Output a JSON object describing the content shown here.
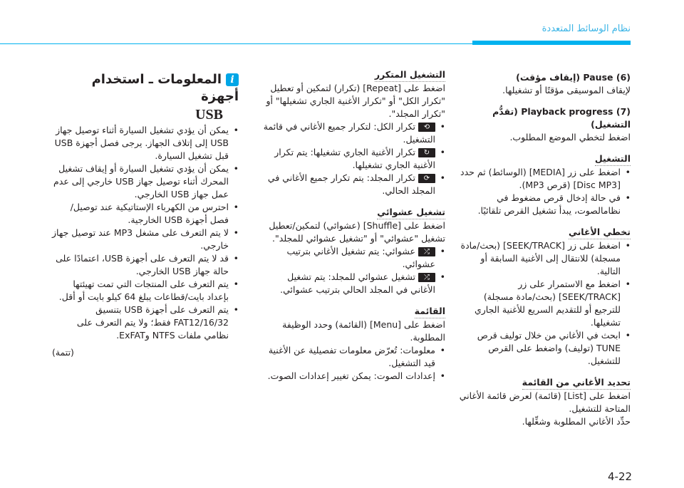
{
  "header": {
    "title": "نظام الوسائط المتعددة",
    "accent_color": "#00b2ef"
  },
  "right_column": {
    "pause": {
      "heading": "(6) Pause (إيقاف مؤقت)",
      "text": "لإيقاف الموسيقى مؤقتًا أو تشغيلها."
    },
    "progress": {
      "heading": "(7) Playback progress (تقدُّم التشغيل)",
      "text": "اضغط لتخطي الموضع المطلوب."
    },
    "playing": {
      "heading": "التشغيل",
      "items": [
        "اضغط على زر [MEDIA] (الوسائط) ثم حدد [Disc MP3] (قرص MP3).",
        "في حالة إدخال قرص مضغوط في نظامالصوت، يبدأ تشغيل القرص تلقائيًا."
      ]
    },
    "skipping": {
      "heading": "تخطي الأغاني",
      "items": [
        "اضغط على زر [SEEK/TRACK] (بحث/مادة مسجلة) للانتقال إلى الأغنية السابقة أو التالية.",
        "اضغط مع الاستمرار على زر [SEEK/TRACK] (بحث/مادة مسجلة) للترجيع أو للتقديم السريع للأغنية الجاري تشغيلها.",
        "ابحث في الأغاني من خلال توليف قرص TUNE (توليف) واضغط على القرص للتشغيل."
      ]
    },
    "select_list": {
      "heading": "تحديد الأغاني من القائمة",
      "text1": "اضغط على [List] (قائمة) لعرض قائمة الأغاني المتاحة للتشغيل.",
      "text2": "حدِّد الأغاني المطلوبة وشغِّلها."
    }
  },
  "middle_column": {
    "repeat": {
      "heading": "التشغيل المتكرر",
      "text": "اضغط على [Repeat] (تكرار) لتمكين أو تعطيل \"تكرار الكل\" أو \"تكرار الأغنية الجاري تشغيلها\" أو \"تكرار المجلد\".",
      "items": [
        {
          "icon": "repeat-all-icon",
          "text": "تكرار الكل: لتكرار جميع الأغاني في قائمة التشغيل."
        },
        {
          "icon": "repeat-one-icon",
          "text": "تكرار الأغنية الجاري تشغيلها: يتم تكرار الأغنية الجاري تشغيلها."
        },
        {
          "icon": "repeat-folder-icon",
          "text": "تكرار المجلد: يتم تكرار جميع الأغاني في المجلد الحالي."
        }
      ]
    },
    "shuffle": {
      "heading": "تشغيل عشوائي",
      "text": "اضغط على [Shuffle] (عشوائي) لتمكين/تعطيل تشغيل \"عشوائي\" أو \"تشغيل عشوائي للمجلد\".",
      "items": [
        {
          "icon": "shuffle-icon",
          "text": "عشوائي: يتم تشغيل الأغاني بترتيب عشوائي."
        },
        {
          "icon": "shuffle-folder-icon",
          "text": "تشغيل عشوائي للمجلد:  يتم تشغيل الأغاني في المجلد الحالي بترتيب عشوائي."
        }
      ]
    },
    "menu": {
      "heading": "القائمة",
      "text": "اضغط على [Menu] (القائمة) وحدد الوظيفة المطلوبة.",
      "items": [
        "معلومات: تُعرّض معلومات تفصيلية عن الأغنية قيد التشغيل.",
        "إعدادات الصوت: يمكن تغيير إعدادات الصوت."
      ]
    }
  },
  "left_column": {
    "info_title": "المعلومات ـ استخدام أجهزة",
    "info_title_usb": "USB",
    "items": [
      "يمكن أن يؤدي تشغيل السيارة أثناء توصيل جهاز USB إلى إتلاف الجهاز. يرجى فصل أجهزة USB قبل تشغيل السيارة.",
      "يمكن أن يؤدي تشغيل السيارة أو إيقاف تشغيل المحرك أثناء توصيل جهاز USB خارجي إلى عدم عمل جهاز USB الخارجي.",
      "احترس من الكهرباء الإستاتيكية عند توصيل/فصل أجهزة USB الخارجية.",
      "لا يتم التعرف على مشغل MP3 عند توصيل جهاز خارجي.",
      "قد لا يتم التعرف على أجهزة USB، اعتمادًا على حالة جهاز USB الخارجي.",
      "يتم التعرف على المنتجات التي تمت تهيئتها بإعداد بايت/قطاعات يبلغ 64 كيلو بايت أو أقل.",
      "يتم التعرف على أجهزة USB بتنسيق FAT12/16/32 فقط؛ ولا يتم التعرف على نظامي ملفات NTFS وExFAT."
    ],
    "continued": "(تتمة)"
  },
  "page_number": "4-22"
}
